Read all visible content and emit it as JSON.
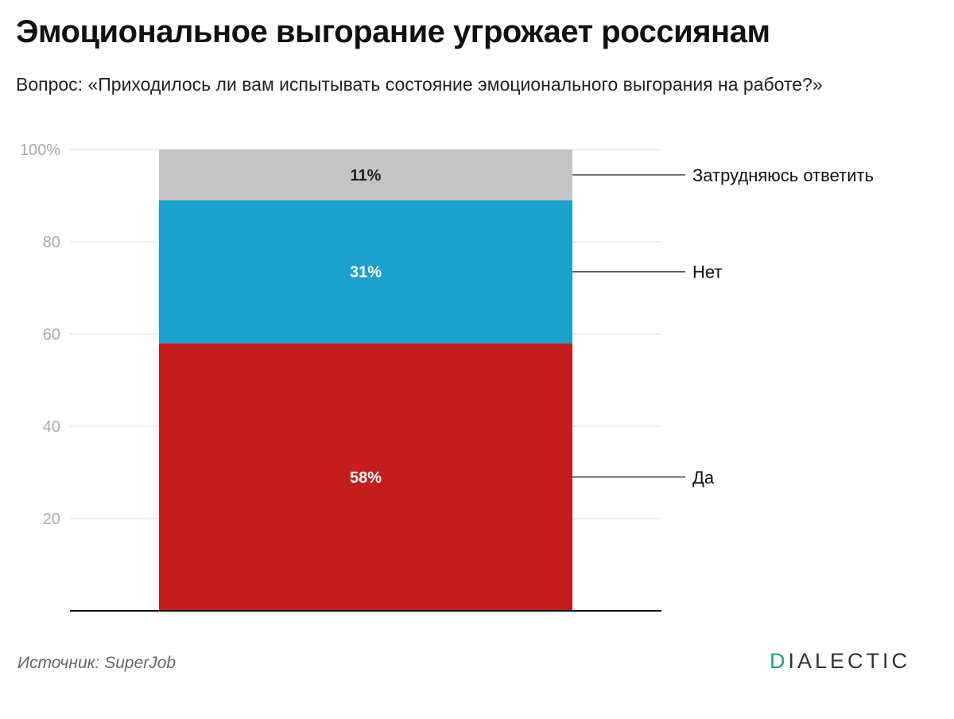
{
  "title": "Эмоциональное выгорание угрожает россиянам",
  "subtitle": "Вопрос: «Приходилось ли вам испытывать состояние эмоционального выгорания на работе?»",
  "source": "Источник: SuperJob",
  "brand": {
    "first_letter": "D",
    "rest": "IALECTIC",
    "accent_color": "#1aa37a"
  },
  "chart_data": {
    "type": "bar",
    "stacked": true,
    "categories": [
      ""
    ],
    "ylim": [
      0,
      100
    ],
    "yticks": [
      20,
      40,
      60,
      80,
      100
    ],
    "ytick_labels": [
      "20",
      "40",
      "60",
      "80",
      "100%"
    ],
    "grid": true,
    "series": [
      {
        "name": "Да",
        "values": [
          58
        ],
        "label": "58%",
        "color": "#c41e1e"
      },
      {
        "name": "Нет",
        "values": [
          31
        ],
        "label": "31%",
        "color": "#1ba1cd"
      },
      {
        "name": "Затрудняюсь ответить",
        "values": [
          11
        ],
        "label": "11%",
        "color": "#c4c4c4"
      }
    ]
  }
}
